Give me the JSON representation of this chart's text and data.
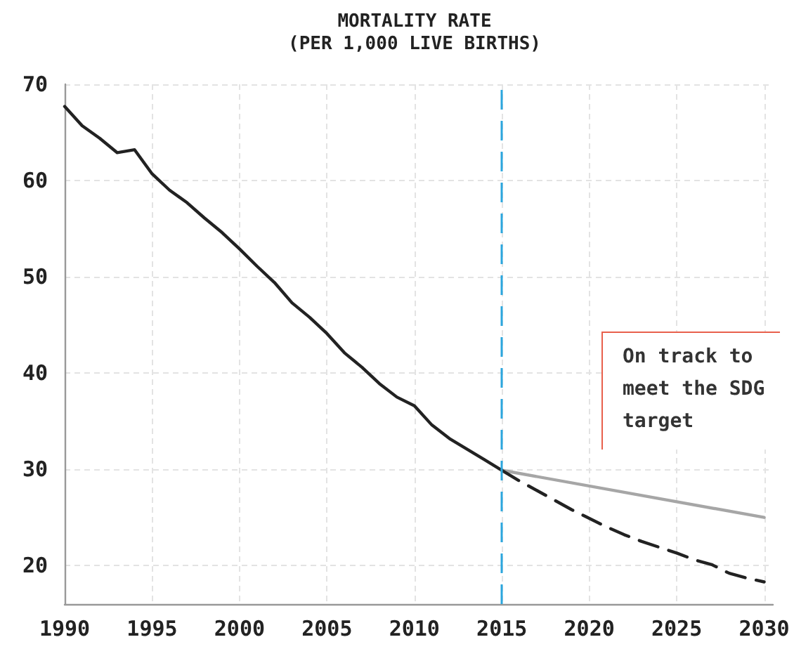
{
  "chart_data": {
    "type": "line",
    "title": "MORTALITY RATE",
    "subtitle": "(PER 1,000 LIVE BIRTHS)",
    "xlim": [
      1990,
      2030.5
    ],
    "xticks": [
      1990,
      1995,
      2000,
      2005,
      2010,
      2015,
      2020,
      2025,
      2030
    ],
    "ylim": [
      16,
      70
    ],
    "yticks": [
      20,
      30,
      40,
      50,
      60,
      70
    ],
    "grid": true,
    "marker": "none",
    "series": [
      {
        "color": "#222222",
        "line_style": "solid",
        "x": [
          1990,
          1991,
          1992,
          1993,
          1994,
          1995,
          1996,
          1997,
          1998,
          1999,
          2000,
          2001,
          2002,
          2003,
          2004,
          2005,
          2006,
          2007,
          2008,
          2009,
          2010,
          2011,
          2012,
          2013,
          2014,
          2015
        ],
        "values": [
          67.7,
          65.7,
          64.4,
          62.9,
          63.2,
          60.7,
          59.0,
          57.7,
          56.1,
          54.6,
          52.9,
          51.1,
          49.4,
          47.3,
          45.8,
          44.1,
          42.1,
          40.6,
          38.9,
          37.5,
          36.6,
          34.6,
          33.2,
          32.1,
          31.0,
          29.9
        ]
      },
      {
        "color": "#a6a6a6",
        "line_style": "solid",
        "x": [
          2015,
          2030
        ],
        "values": [
          29.9,
          25.0
        ]
      },
      {
        "color": "#222222",
        "line_style": "dashed",
        "x": [
          2015,
          2016,
          2017,
          2018,
          2019,
          2020,
          2021,
          2022,
          2023,
          2024,
          2025,
          2026,
          2027,
          2028,
          2029,
          2030
        ],
        "values": [
          29.9,
          28.8,
          27.8,
          26.8,
          25.8,
          24.9,
          24.0,
          23.2,
          22.5,
          21.9,
          21.3,
          20.6,
          20.1,
          19.2,
          18.7,
          18.3
        ]
      }
    ],
    "ref_lines": [
      {
        "axis": "x",
        "value": 2015,
        "color": "#2ba6de",
        "line_style": "dashed"
      }
    ],
    "annotations": [
      "On track to meet the SDG target"
    ]
  }
}
